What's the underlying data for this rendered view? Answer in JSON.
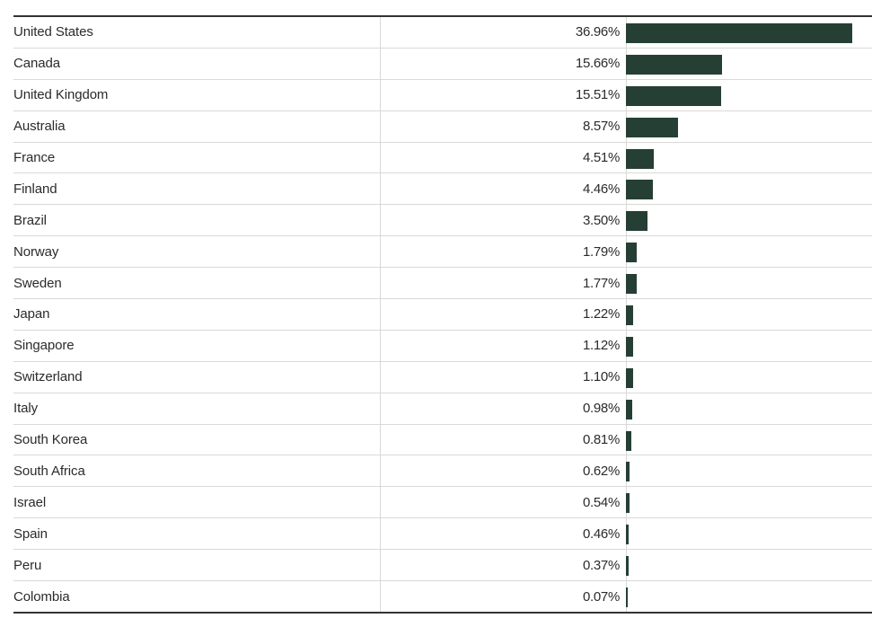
{
  "chart_data": {
    "type": "bar",
    "orientation": "horizontal",
    "grid": false,
    "legend": "none",
    "bar_color": "#263f35",
    "categories": [
      "United States",
      "Canada",
      "United Kingdom",
      "Australia",
      "France",
      "Finland",
      "Brazil",
      "Norway",
      "Sweden",
      "Japan",
      "Singapore",
      "Switzerland",
      "Italy",
      "South Korea",
      "South Africa",
      "Israel",
      "Spain",
      "Peru",
      "Colombia"
    ],
    "values": [
      36.96,
      15.66,
      15.51,
      8.57,
      4.51,
      4.46,
      3.5,
      1.79,
      1.77,
      1.22,
      1.12,
      1.1,
      0.98,
      0.81,
      0.62,
      0.54,
      0.46,
      0.37,
      0.07
    ],
    "value_labels": [
      "36.96%",
      "15.66%",
      "15.51%",
      "8.57%",
      "4.51%",
      "4.46%",
      "3.50%",
      "1.79%",
      "1.77%",
      "1.22%",
      "1.12%",
      "1.10%",
      "0.98%",
      "0.81%",
      "0.62%",
      "0.54%",
      "0.46%",
      "0.37%",
      "0.07%"
    ],
    "xlim": [
      0,
      36.96
    ]
  }
}
